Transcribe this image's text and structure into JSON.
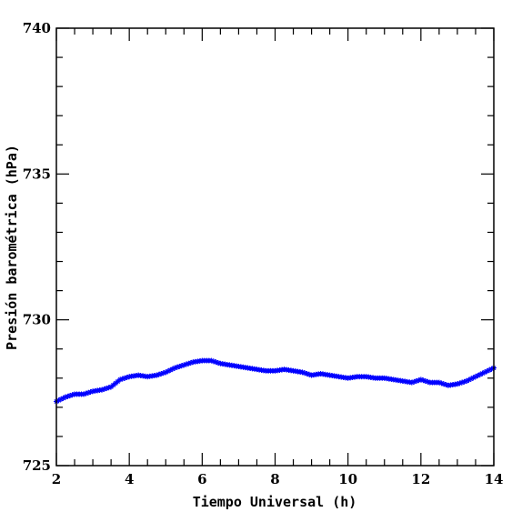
{
  "chart_data": {
    "type": "scatter",
    "xlabel": "Tiempo Universal (h)",
    "ylabel": "Presión barométrica (hPa)",
    "xlim": [
      2,
      14
    ],
    "ylim": [
      725,
      740
    ],
    "xticks": [
      2,
      4,
      6,
      8,
      10,
      12,
      14
    ],
    "yticks": [
      725,
      730,
      735,
      740
    ],
    "grid": false,
    "marker": "asterisk",
    "color": "#0000ff",
    "series": [
      {
        "x": [
          2.0,
          2.25,
          2.5,
          2.75,
          3.0,
          3.25,
          3.5,
          3.75,
          4.0,
          4.25,
          4.5,
          4.75,
          5.0,
          5.25,
          5.5,
          5.75,
          6.0,
          6.25,
          6.5,
          6.75,
          7.0,
          7.25,
          7.5,
          7.75,
          8.0,
          8.25,
          8.5,
          8.75,
          9.0,
          9.25,
          9.5,
          9.75,
          10.0,
          10.25,
          10.5,
          10.75,
          11.0,
          11.25,
          11.5,
          11.75,
          12.0,
          12.25,
          12.5,
          12.75,
          13.0,
          13.25,
          13.5,
          13.75,
          14.0
        ],
        "y": [
          727.2,
          727.35,
          727.45,
          727.45,
          727.55,
          727.6,
          727.7,
          727.95,
          728.05,
          728.1,
          728.05,
          728.1,
          728.2,
          728.35,
          728.45,
          728.55,
          728.6,
          728.6,
          728.5,
          728.45,
          728.4,
          728.35,
          728.3,
          728.25,
          728.25,
          728.3,
          728.25,
          728.2,
          728.1,
          728.15,
          728.1,
          728.05,
          728.0,
          728.05,
          728.05,
          728.0,
          728.0,
          727.95,
          727.9,
          727.85,
          727.95,
          727.85,
          727.85,
          727.75,
          727.8,
          727.9,
          728.05,
          728.2,
          728.35
        ]
      }
    ]
  }
}
